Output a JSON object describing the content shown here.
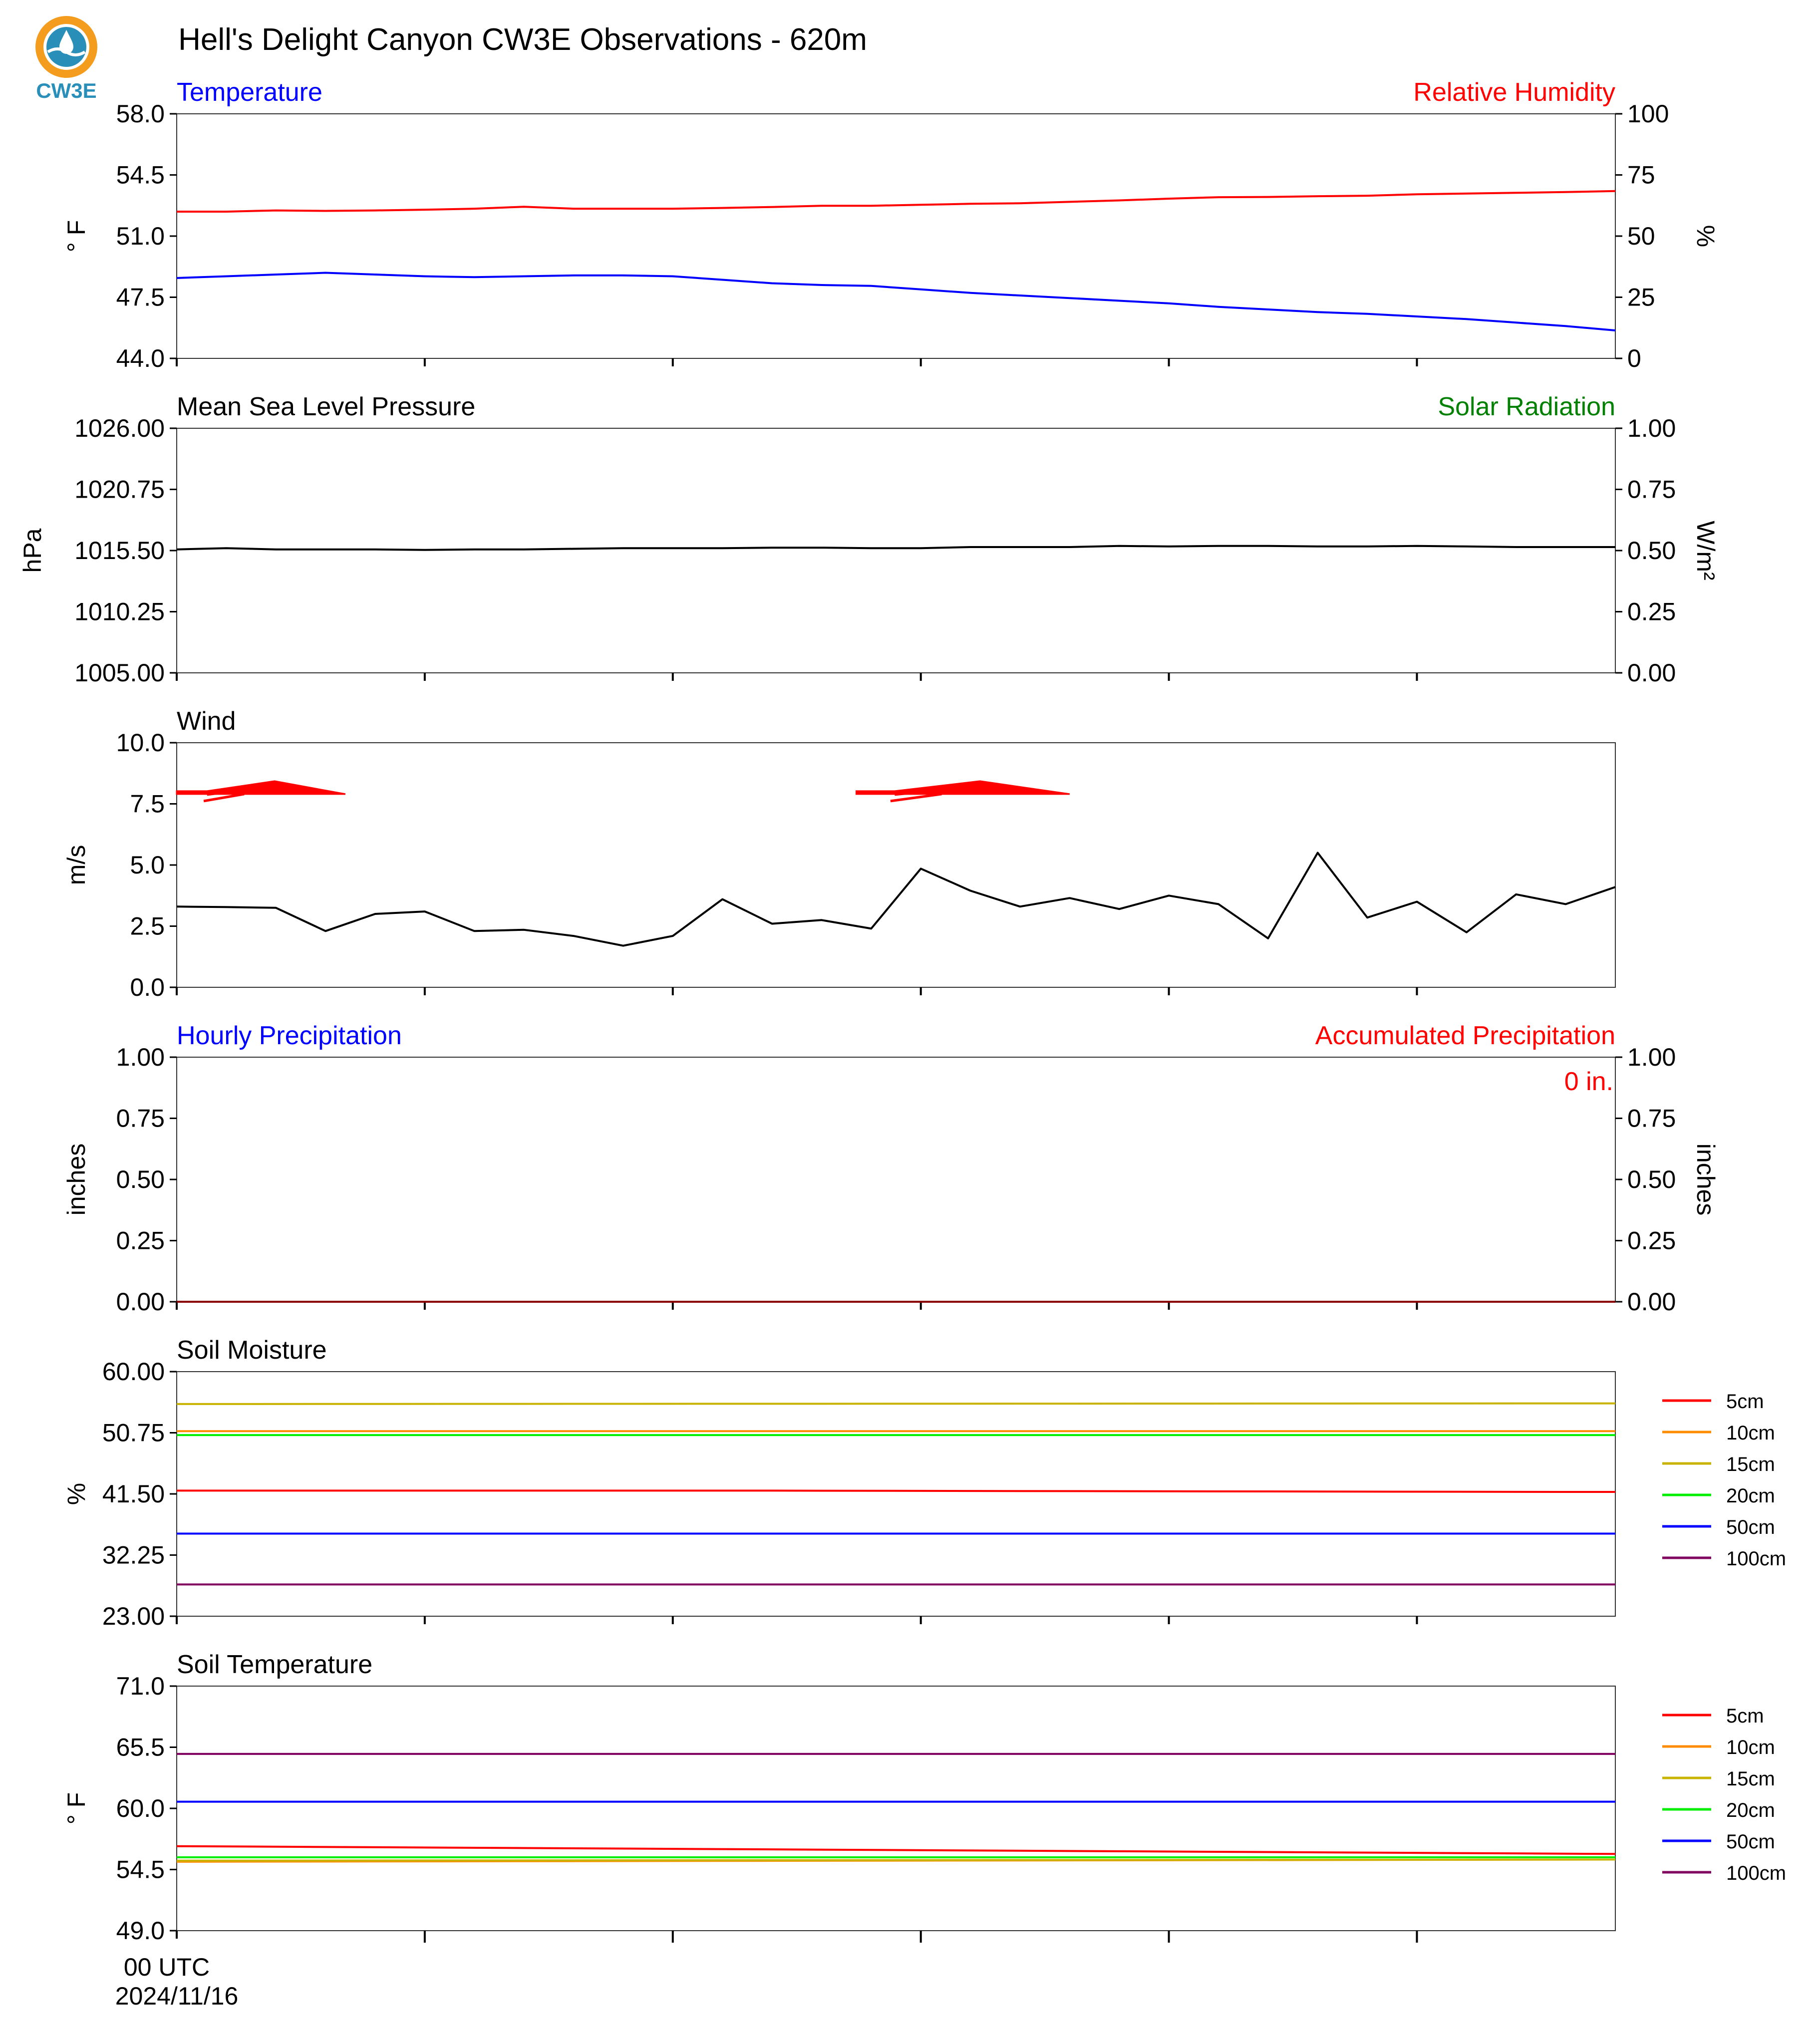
{
  "title": "Hell's Delight Canyon CW3E Observations - 620m",
  "logo": {
    "text": "CW3E",
    "colors": {
      "ring": "#f39c1e",
      "drop": "#2a8fb8",
      "text": "#2a8fb8"
    }
  },
  "x_axis": {
    "start_label": "00 UTC",
    "date_label": "2024/11/16"
  },
  "chart_data": [
    {
      "type": "line",
      "left_title": "Temperature",
      "right_title": "Relative Humidity",
      "ylabel": "° F",
      "ylabel_right": "%",
      "ylim": [
        44.0,
        58.0
      ],
      "yticks": [
        "58.0",
        "54.5",
        "51.0",
        "47.5",
        "44.0"
      ],
      "ylim_right": [
        0,
        100
      ],
      "yticks_right": [
        "100",
        "75",
        "50",
        "25",
        "0"
      ],
      "series": [
        {
          "color": "#0000ff",
          "axis": "left",
          "x": [
            0,
            1,
            2,
            3,
            4,
            5,
            6,
            7,
            8,
            9,
            10,
            11,
            12,
            13,
            14,
            15,
            16,
            17,
            18,
            19,
            20,
            21,
            22,
            23,
            24,
            25,
            26,
            27,
            28,
            29
          ],
          "values": [
            48.6,
            48.7,
            48.8,
            48.9,
            48.8,
            48.7,
            48.65,
            48.7,
            48.75,
            48.75,
            48.7,
            48.5,
            48.3,
            48.2,
            48.15,
            47.95,
            47.75,
            47.6,
            47.45,
            47.3,
            47.15,
            46.95,
            46.8,
            46.65,
            46.55,
            46.4,
            46.25,
            46.05,
            45.85,
            45.6
          ]
        },
        {
          "color": "#ff0000",
          "axis": "right",
          "x": [
            0,
            1,
            2,
            3,
            4,
            5,
            6,
            7,
            8,
            9,
            10,
            11,
            12,
            13,
            14,
            15,
            16,
            17,
            18,
            19,
            20,
            21,
            22,
            23,
            24,
            25,
            26,
            27,
            28,
            29
          ],
          "values": [
            60,
            60,
            60.5,
            60.3,
            60.5,
            60.8,
            61.2,
            62,
            61.2,
            61.2,
            61.2,
            61.5,
            61.9,
            62.4,
            62.4,
            62.8,
            63.2,
            63.4,
            64,
            64.6,
            65.3,
            65.9,
            66,
            66.3,
            66.5,
            67.1,
            67.4,
            67.7,
            68,
            68.4
          ]
        }
      ]
    },
    {
      "type": "line",
      "left_title": "Mean Sea Level Pressure",
      "right_title": "Solar Radiation",
      "ylabel": "hPa",
      "ylabel_right": "W/m²",
      "ylim": [
        1005.0,
        1026.0
      ],
      "yticks": [
        "1026.00",
        "1020.75",
        "1015.50",
        "1010.25",
        "1005.00"
      ],
      "ylim_right": [
        0,
        1
      ],
      "yticks_right": [
        "1.00",
        "0.75",
        "0.50",
        "0.25",
        "0.00"
      ],
      "series": [
        {
          "color": "#000000",
          "axis": "left",
          "x": [
            0,
            1,
            2,
            3,
            4,
            5,
            6,
            7,
            8,
            9,
            10,
            11,
            12,
            13,
            14,
            15,
            16,
            17,
            18,
            19,
            20,
            21,
            22,
            23,
            24,
            25,
            26,
            27,
            28,
            29
          ],
          "values": [
            1015.6,
            1015.7,
            1015.6,
            1015.6,
            1015.6,
            1015.55,
            1015.6,
            1015.6,
            1015.65,
            1015.7,
            1015.7,
            1015.7,
            1015.75,
            1015.75,
            1015.7,
            1015.7,
            1015.8,
            1015.8,
            1015.8,
            1015.9,
            1015.85,
            1015.9,
            1015.9,
            1015.85,
            1015.85,
            1015.9,
            1015.85,
            1015.8,
            1015.8,
            1015.8
          ]
        }
      ]
    },
    {
      "type": "line",
      "left_title": "Wind",
      "ylabel": "m/s",
      "ylim": [
        0.0,
        10.0
      ],
      "yticks": [
        "10.0",
        "7.5",
        "5.0",
        "2.5",
        "0.0"
      ],
      "series": [
        {
          "color": "#000000",
          "axis": "left",
          "x": [
            0,
            1,
            2,
            3,
            4,
            5,
            6,
            7,
            8,
            9,
            10,
            11,
            12,
            13,
            14,
            15,
            16,
            17,
            18,
            19,
            20,
            21,
            22,
            23,
            24,
            25,
            26,
            27,
            28,
            29
          ],
          "values": [
            3.3,
            3.28,
            3.25,
            2.3,
            3.0,
            3.1,
            2.3,
            2.35,
            2.1,
            1.7,
            2.1,
            3.6,
            2.6,
            2.75,
            2.4,
            4.85,
            3.95,
            3.3,
            3.65,
            3.2,
            3.75,
            3.4,
            2.0,
            5.5,
            2.85,
            3.5,
            2.25,
            3.8,
            3.4,
            4.1
          ]
        }
      ],
      "barbs": [
        {
          "color": "#ff0000",
          "x": 0,
          "x_end": 3.4,
          "y": 7.9
        },
        {
          "color": "#ff0000",
          "x": 13.7,
          "x_end": 18.0,
          "y": 7.9
        }
      ]
    },
    {
      "type": "line",
      "left_title": "Hourly Precipitation",
      "right_title": "Accumulated Precipitation",
      "annotation": "0 in.",
      "ylabel": "inches",
      "ylabel_right": "inches",
      "ylim": [
        0,
        1
      ],
      "yticks": [
        "1.00",
        "0.75",
        "0.50",
        "0.25",
        "0.00"
      ],
      "ylim_right": [
        0,
        1
      ],
      "yticks_right": [
        "1.00",
        "0.75",
        "0.50",
        "0.25",
        "0.00"
      ],
      "series": [
        {
          "color": "#8b0000",
          "axis": "left",
          "x": [
            0,
            29
          ],
          "values": [
            0,
            0
          ]
        }
      ]
    },
    {
      "type": "line",
      "left_title": "Soil Moisture",
      "ylabel": "%",
      "ylim": [
        23.0,
        60.0
      ],
      "yticks": [
        "60.00",
        "50.75",
        "41.50",
        "32.25",
        "23.00"
      ],
      "series": [
        {
          "name": "5cm",
          "color": "#ff0000",
          "x": [
            0,
            12,
            28,
            29
          ],
          "values": [
            42.0,
            42.0,
            41.8,
            41.8
          ]
        },
        {
          "name": "10cm",
          "color": "#ff8c00",
          "x": [
            0,
            29
          ],
          "values": [
            51.0,
            51.0
          ]
        },
        {
          "name": "15cm",
          "color": "#c8b400",
          "x": [
            0,
            29
          ],
          "values": [
            55.1,
            55.2
          ]
        },
        {
          "name": "20cm",
          "color": "#00ee00",
          "x": [
            0,
            29
          ],
          "values": [
            50.4,
            50.4
          ]
        },
        {
          "name": "50cm",
          "color": "#0000ff",
          "x": [
            0,
            29
          ],
          "values": [
            35.5,
            35.5
          ]
        },
        {
          "name": "100cm",
          "color": "#800060",
          "x": [
            0,
            29
          ],
          "values": [
            27.8,
            27.8
          ]
        }
      ]
    },
    {
      "type": "line",
      "left_title": "Soil Temperature",
      "ylabel": "° F",
      "ylim": [
        49.0,
        71.0
      ],
      "yticks": [
        "71.0",
        "65.5",
        "60.0",
        "54.5",
        "49.0"
      ],
      "series": [
        {
          "name": "5cm",
          "color": "#ff0000",
          "x": [
            0,
            29
          ],
          "values": [
            56.6,
            55.9
          ]
        },
        {
          "name": "10cm",
          "color": "#ff8c00",
          "x": [
            0,
            29
          ],
          "values": [
            55.2,
            55.4
          ]
        },
        {
          "name": "15cm",
          "color": "#c8b400",
          "x": [
            0,
            29
          ],
          "values": [
            55.3,
            55.4
          ]
        },
        {
          "name": "20cm",
          "color": "#00ee00",
          "x": [
            0,
            29
          ],
          "values": [
            55.6,
            55.6
          ]
        },
        {
          "name": "50cm",
          "color": "#0000ff",
          "x": [
            0,
            29
          ],
          "values": [
            60.6,
            60.6
          ]
        },
        {
          "name": "100cm",
          "color": "#800060",
          "x": [
            0,
            29
          ],
          "values": [
            64.9,
            64.9
          ]
        }
      ]
    }
  ]
}
